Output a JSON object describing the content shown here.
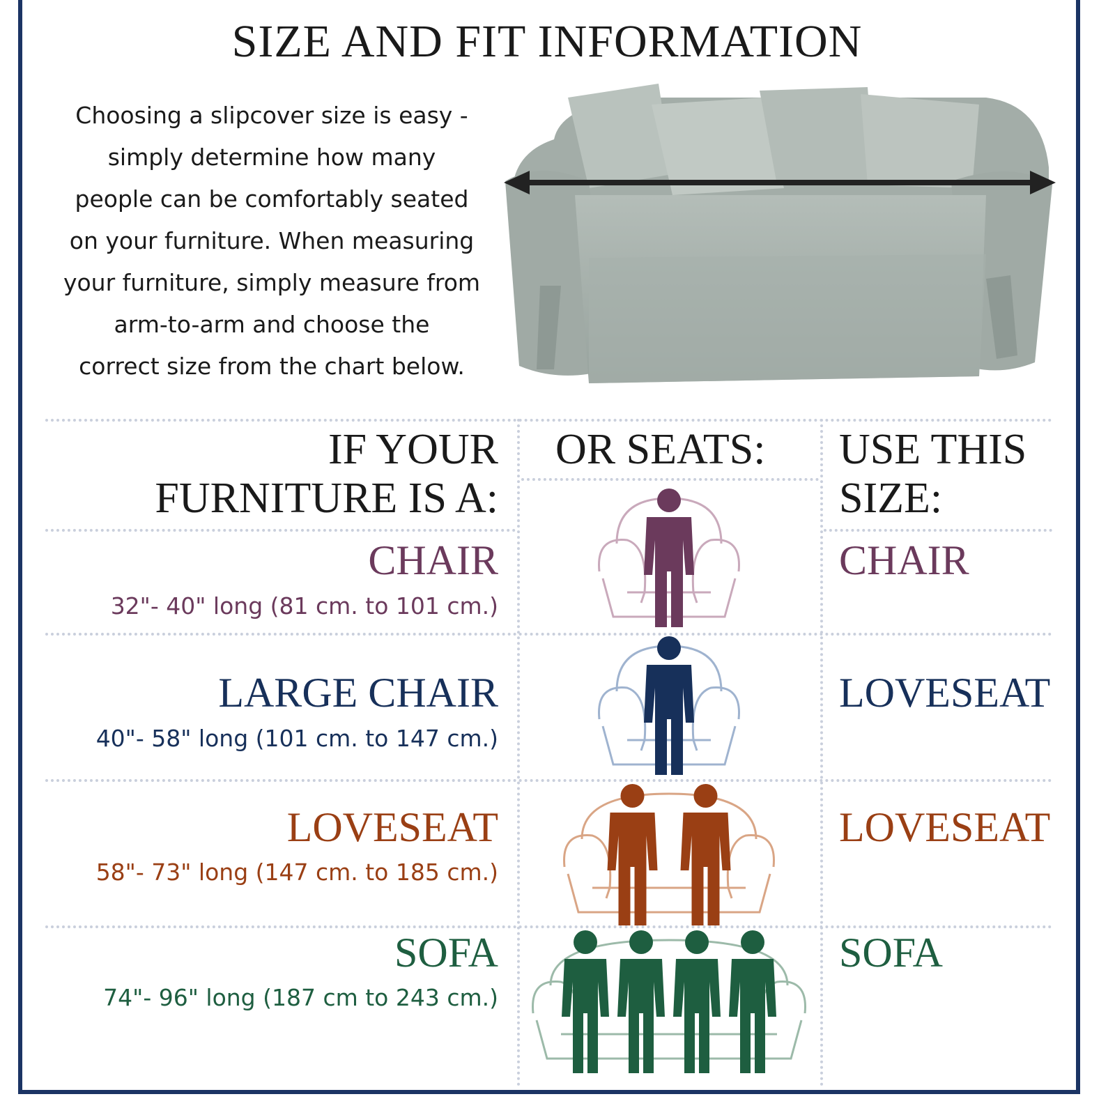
{
  "title": "SIZE AND FIT INFORMATION",
  "intro_lines": [
    "Choosing a slipcover size is easy -",
    "simply determine how many",
    "people can be comfortably seated",
    "on your furniture. When measuring",
    "your furniture, simply measure from",
    "arm-to-arm and choose the",
    "correct size from the chart below."
  ],
  "headers": {
    "col1": [
      "IF YOUR",
      "FURNITURE IS A:"
    ],
    "col2": "OR SEATS:",
    "col3": [
      "USE THIS",
      "SIZE:"
    ]
  },
  "colors": {
    "border": "#1b3464",
    "measure_arrow": "#222222",
    "slipcover": "#a8b2ad"
  },
  "rows": [
    {
      "furniture": "CHAIR",
      "dimensions": "32\"- 40\" long  (81 cm. to 101 cm.)",
      "seats": 1,
      "size": "CHAIR",
      "color": "#6b3a5c",
      "light": "#c9a9bb"
    },
    {
      "furniture": "LARGE CHAIR",
      "dimensions": "40\"- 58\" long (101 cm. to 147 cm.)",
      "seats": 1,
      "size": "LOVESEAT",
      "color": "#17305a",
      "light": "#9fb3cf"
    },
    {
      "furniture": "LOVESEAT",
      "dimensions": "58\"- 73\" long (147 cm. to 185 cm.)",
      "seats": 2,
      "size": "LOVESEAT",
      "color": "#9a3f14",
      "light": "#d9a585"
    },
    {
      "furniture": "SOFA",
      "dimensions": "74\"- 96\" long  (187 cm to 243 cm.)",
      "seats": 4,
      "size": "SOFA",
      "color": "#1e5e40",
      "light": "#9cbaa9"
    }
  ]
}
